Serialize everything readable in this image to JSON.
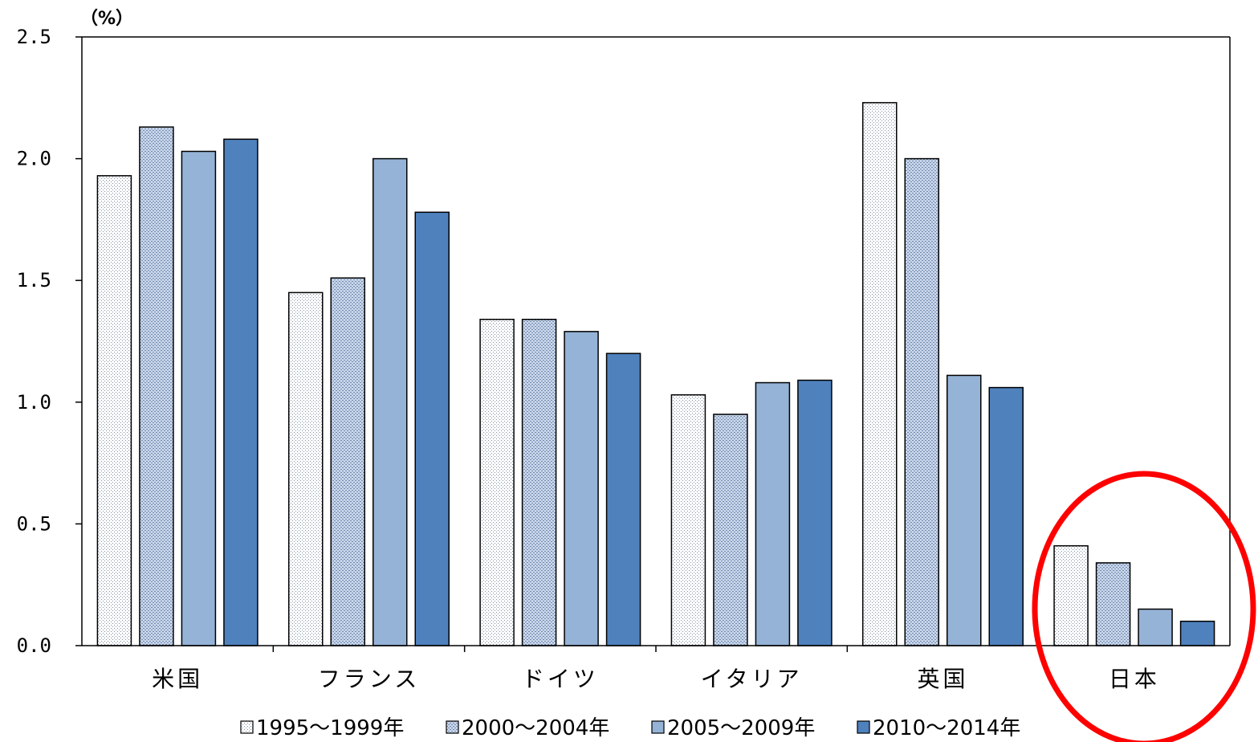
{
  "chart_data": {
    "type": "bar",
    "unit_label": "（%）",
    "categories": [
      "米国",
      "フランス",
      "ドイツ",
      "イタリア",
      "英国",
      "日本"
    ],
    "series": [
      {
        "name": "1995〜1999年",
        "values": [
          1.93,
          1.45,
          1.34,
          1.03,
          2.23,
          0.41
        ],
        "color": "#ffffff",
        "pattern": "dots-light"
      },
      {
        "name": "2000〜2004年",
        "values": [
          2.13,
          1.51,
          1.34,
          0.95,
          2.0,
          0.34
        ],
        "color": "#b4c6e0",
        "pattern": "dots-dense"
      },
      {
        "name": "2005〜2009年",
        "values": [
          2.03,
          2.0,
          1.29,
          1.08,
          1.11,
          0.15
        ],
        "color": "#95b3d7"
      },
      {
        "name": "2010〜2014年",
        "values": [
          2.08,
          1.78,
          1.2,
          1.09,
          1.06,
          0.1
        ],
        "color": "#4f81bd"
      }
    ],
    "yticks": [
      "0.0",
      "0.5",
      "1.0",
      "1.5",
      "2.0",
      "2.5"
    ],
    "ylim": [
      0,
      2.5
    ],
    "grid": false,
    "legend_position": "bottom",
    "highlight": {
      "category": "日本",
      "shape": "circle",
      "color": "#ff0000"
    }
  }
}
